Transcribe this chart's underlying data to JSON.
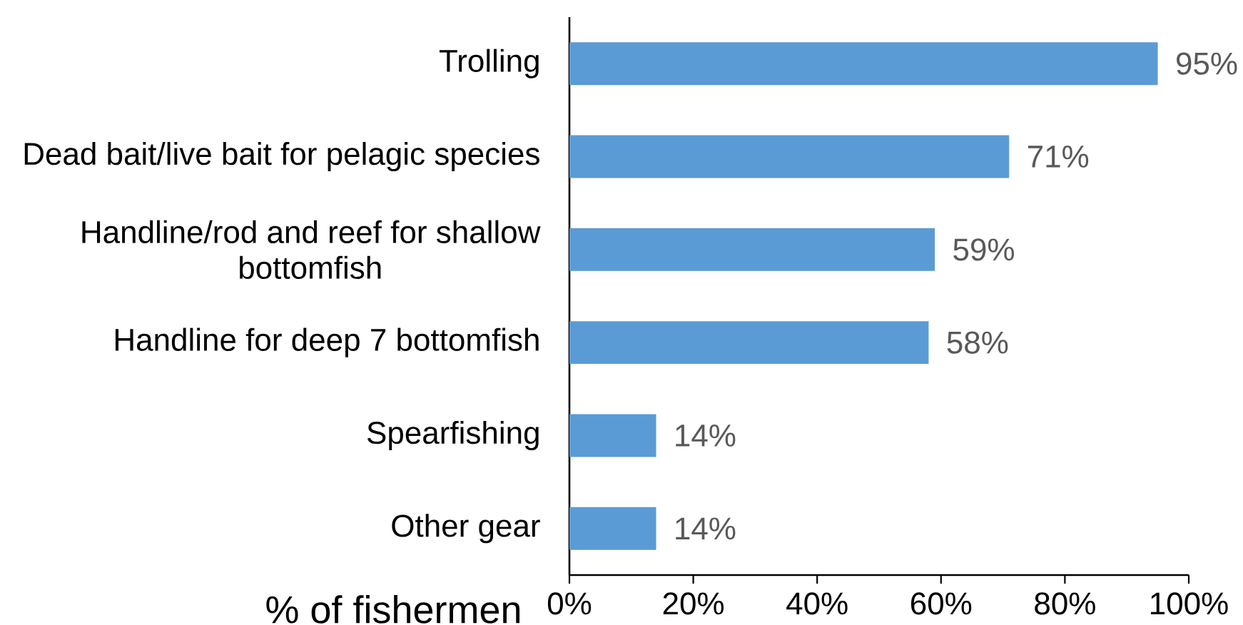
{
  "chart_data": {
    "type": "bar",
    "orientation": "horizontal",
    "categories": [
      "Trolling",
      "Dead bait/live bait for pelagic species",
      "Handline/rod and reef for shallow bottomfish",
      "Handline for deep 7 bottomfish",
      "Spearfishing",
      "Other gear"
    ],
    "values": [
      95,
      71,
      59,
      58,
      14,
      14
    ],
    "value_labels": [
      "95%",
      "71%",
      "59%",
      "58%",
      "14%",
      "14%"
    ],
    "color": "#5b9bd5",
    "xlabel": "% of fishermen",
    "xlim": [
      0,
      100
    ],
    "xticks": [
      {
        "value": 0,
        "label": "0%"
      },
      {
        "value": 20,
        "label": "20%"
      },
      {
        "value": 40,
        "label": "40%"
      },
      {
        "value": 60,
        "label": "60%"
      },
      {
        "value": 80,
        "label": "80%"
      },
      {
        "value": 100,
        "label": "100%"
      }
    ]
  }
}
